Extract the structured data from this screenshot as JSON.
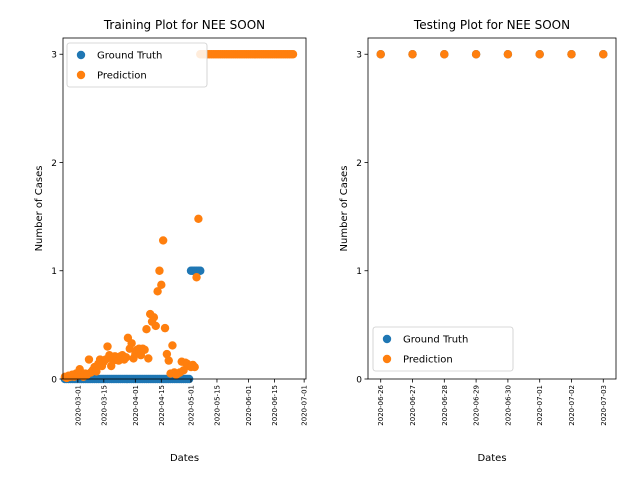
{
  "chart_data": [
    {
      "type": "scatter",
      "title": "Training Plot for NEE SOON",
      "xlabel": "Dates",
      "ylabel": "Number of Cases",
      "x_ticks": [
        "2020-03-01",
        "2020-03-15",
        "2020-04-01",
        "2020-04-15",
        "2020-05-01",
        "2020-05-15",
        "2020-06-01",
        "2020-06-15",
        "2020-07-01"
      ],
      "y_ticks": [
        "0",
        "1",
        "2",
        "3"
      ],
      "xlim": [
        "2020-02-22",
        "2020-07-02"
      ],
      "ylim": [
        0,
        3.15
      ],
      "legend_position": "top-left",
      "grid": false,
      "series": [
        {
          "name": "Ground Truth",
          "color": "#1f77b4",
          "x": [
            "2020-02-23",
            "2020-02-24",
            "2020-02-25",
            "2020-02-26",
            "2020-02-27",
            "2020-02-28",
            "2020-02-29",
            "2020-03-01",
            "2020-03-02",
            "2020-03-03",
            "2020-03-04",
            "2020-03-05",
            "2020-03-06",
            "2020-03-07",
            "2020-03-08",
            "2020-03-09",
            "2020-03-10",
            "2020-03-11",
            "2020-03-12",
            "2020-03-13",
            "2020-03-14",
            "2020-03-15",
            "2020-03-16",
            "2020-03-17",
            "2020-03-18",
            "2020-03-19",
            "2020-03-20",
            "2020-03-21",
            "2020-03-22",
            "2020-03-23",
            "2020-03-24",
            "2020-03-25",
            "2020-03-26",
            "2020-03-27",
            "2020-03-28",
            "2020-03-29",
            "2020-03-30",
            "2020-03-31",
            "2020-04-01",
            "2020-04-02",
            "2020-04-03",
            "2020-04-04",
            "2020-04-05",
            "2020-04-06",
            "2020-04-07",
            "2020-04-08",
            "2020-04-09",
            "2020-04-10",
            "2020-04-11",
            "2020-04-12",
            "2020-04-13",
            "2020-04-14",
            "2020-04-15",
            "2020-04-16",
            "2020-04-17",
            "2020-04-18",
            "2020-04-19",
            "2020-04-20",
            "2020-04-21",
            "2020-04-22",
            "2020-04-23",
            "2020-04-24",
            "2020-04-25",
            "2020-04-26",
            "2020-04-27",
            "2020-04-28",
            "2020-04-29",
            "2020-04-30",
            "2020-05-01",
            "2020-05-02",
            "2020-05-03",
            "2020-05-04",
            "2020-05-05",
            "2020-05-06"
          ],
          "y": [
            0,
            0,
            0,
            0,
            0,
            0,
            0,
            0,
            0,
            0,
            0,
            0,
            0,
            0,
            0,
            0,
            0,
            0,
            0,
            0,
            0,
            0,
            0,
            0,
            0,
            0,
            0,
            0,
            0,
            0,
            0,
            0,
            0,
            0,
            0,
            0,
            0,
            0,
            0,
            0,
            0,
            0,
            0,
            0,
            0,
            0,
            0,
            0,
            0,
            0,
            0,
            0,
            0,
            0,
            0,
            0,
            0,
            0,
            0,
            0,
            0,
            0,
            0,
            0,
            0,
            0,
            0,
            0,
            1,
            1,
            1,
            1,
            1,
            1
          ]
        },
        {
          "name": "Prediction",
          "color": "#ff7f0e",
          "x": [
            "2020-02-23",
            "2020-02-24",
            "2020-02-25",
            "2020-02-26",
            "2020-02-27",
            "2020-02-28",
            "2020-02-29",
            "2020-03-01",
            "2020-03-02",
            "2020-03-03",
            "2020-03-04",
            "2020-03-05",
            "2020-03-06",
            "2020-03-07",
            "2020-03-08",
            "2020-03-09",
            "2020-03-10",
            "2020-03-11",
            "2020-03-12",
            "2020-03-13",
            "2020-03-14",
            "2020-03-15",
            "2020-03-16",
            "2020-03-17",
            "2020-03-18",
            "2020-03-19",
            "2020-03-20",
            "2020-03-21",
            "2020-03-22",
            "2020-03-23",
            "2020-03-24",
            "2020-03-25",
            "2020-03-26",
            "2020-03-27",
            "2020-03-28",
            "2020-03-29",
            "2020-03-30",
            "2020-03-31",
            "2020-04-01",
            "2020-04-02",
            "2020-04-03",
            "2020-04-04",
            "2020-04-05",
            "2020-04-06",
            "2020-04-07",
            "2020-04-08",
            "2020-04-09",
            "2020-04-10",
            "2020-04-11",
            "2020-04-12",
            "2020-04-13",
            "2020-04-14",
            "2020-04-15",
            "2020-04-16",
            "2020-04-17",
            "2020-04-18",
            "2020-04-19",
            "2020-04-20",
            "2020-04-21",
            "2020-04-22",
            "2020-04-23",
            "2020-04-24",
            "2020-04-25",
            "2020-04-26",
            "2020-04-27",
            "2020-04-28",
            "2020-04-29",
            "2020-04-30",
            "2020-05-01",
            "2020-05-02",
            "2020-05-03",
            "2020-05-04",
            "2020-05-05",
            "2020-05-06",
            "2020-05-07",
            "2020-05-08",
            "2020-05-09",
            "2020-05-10",
            "2020-05-11",
            "2020-05-12",
            "2020-05-13",
            "2020-05-14",
            "2020-05-15",
            "2020-05-16",
            "2020-05-17",
            "2020-05-18",
            "2020-05-19",
            "2020-05-20",
            "2020-05-21",
            "2020-05-22",
            "2020-05-23",
            "2020-05-24",
            "2020-05-25",
            "2020-05-26",
            "2020-05-27",
            "2020-05-28",
            "2020-05-29",
            "2020-05-30",
            "2020-05-31",
            "2020-06-01",
            "2020-06-02",
            "2020-06-03",
            "2020-06-04",
            "2020-06-05",
            "2020-06-06",
            "2020-06-07",
            "2020-06-08",
            "2020-06-09",
            "2020-06-10",
            "2020-06-11",
            "2020-06-12",
            "2020-06-13",
            "2020-06-14",
            "2020-06-15",
            "2020-06-16",
            "2020-06-17",
            "2020-06-18",
            "2020-06-19",
            "2020-06-20",
            "2020-06-21",
            "2020-06-22",
            "2020-06-23",
            "2020-06-24",
            "2020-06-25"
          ],
          "y": [
            0.02,
            0.01,
            0.03,
            0.02,
            0.04,
            0.02,
            0.05,
            0.03,
            0.09,
            0.04,
            0.02,
            0.05,
            0.04,
            0.18,
            0.06,
            0.08,
            0.11,
            0.07,
            0.14,
            0.18,
            0.12,
            0.16,
            0.18,
            0.3,
            0.22,
            0.12,
            0.17,
            0.21,
            0.19,
            0.17,
            0.21,
            0.22,
            0.18,
            0.2,
            0.38,
            0.28,
            0.33,
            0.19,
            0.23,
            0.27,
            0.28,
            0.22,
            0.28,
            0.27,
            0.46,
            0.19,
            0.6,
            0.53,
            0.57,
            0.49,
            0.81,
            1.0,
            0.87,
            1.28,
            0.47,
            0.23,
            0.17,
            0.05,
            0.31,
            0.06,
            0.04,
            0.05,
            0.06,
            0.16,
            0.08,
            0.15,
            0.14,
            0.12,
            0.11,
            0.13,
            0.11,
            0.94,
            1.48,
            3.0,
            3.0,
            3.0,
            3.0,
            3.0,
            3.0,
            3.0,
            3.0,
            3.0,
            3.0,
            3.0,
            3.0,
            3.0,
            3.0,
            3.0,
            3.0,
            3.0,
            3.0,
            3.0,
            3.0,
            3.0,
            3.0,
            3.0,
            3.0,
            3.0,
            3.0,
            3.0,
            3.0,
            3.0,
            3.0,
            3.0,
            3.0,
            3.0,
            3.0,
            3.0,
            3.0,
            3.0,
            3.0,
            3.0,
            3.0,
            3.0,
            3.0,
            3.0,
            3.0,
            3.0,
            3.0,
            3.0,
            3.0,
            3.0,
            3.0,
            3.0
          ]
        }
      ]
    },
    {
      "type": "scatter",
      "title": "Testing Plot for NEE SOON",
      "xlabel": "Dates",
      "ylabel": "Number of Cases",
      "x_ticks": [
        "2020-06-26",
        "2020-06-27",
        "2020-06-28",
        "2020-06-29",
        "2020-06-30",
        "2020-07-01",
        "2020-07-02",
        "2020-07-03"
      ],
      "y_ticks": [
        "0",
        "1",
        "2",
        "3"
      ],
      "xlim": [
        "2020-06-25.6",
        "2020-07-03.4"
      ],
      "ylim": [
        0,
        3.15
      ],
      "legend_position": "bottom-left",
      "grid": false,
      "series": [
        {
          "name": "Ground Truth",
          "color": "#1f77b4",
          "x": [
            "2020-06-26",
            "2020-06-27",
            "2020-06-28",
            "2020-06-29",
            "2020-06-30",
            "2020-07-01",
            "2020-07-02",
            "2020-07-03"
          ],
          "y": [
            3,
            3,
            3,
            3,
            3,
            3,
            3,
            3
          ]
        },
        {
          "name": "Prediction",
          "color": "#ff7f0e",
          "x": [
            "2020-06-26",
            "2020-06-27",
            "2020-06-28",
            "2020-06-29",
            "2020-06-30",
            "2020-07-01",
            "2020-07-02",
            "2020-07-03"
          ],
          "y": [
            3,
            3,
            3,
            3,
            3,
            3,
            3,
            3
          ]
        }
      ]
    }
  ]
}
